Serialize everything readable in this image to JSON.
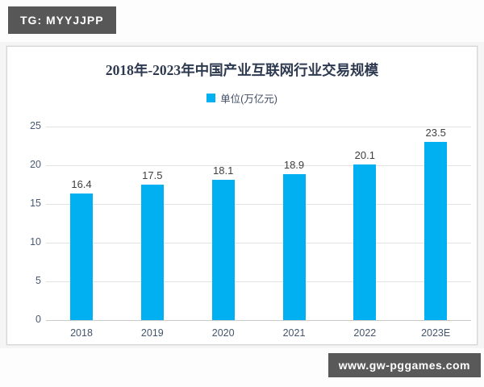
{
  "badges": {
    "top_left": "TG: MYYJJPP",
    "bottom_right": "www.gw-pggames.com",
    "badge_bg": "#575757",
    "badge_text_color": "#ffffff"
  },
  "chart_data": {
    "type": "bar",
    "title": "2018年-2023年中国产业互联网行业交易规模",
    "legend": [
      {
        "label": "单位(万亿元)",
        "color": "#00b0f0"
      }
    ],
    "legend_position": "top-center",
    "categories": [
      "2018",
      "2019",
      "2020",
      "2021",
      "2022",
      "2023E"
    ],
    "values": [
      16.4,
      17.5,
      18.1,
      18.9,
      20.1,
      23.5
    ],
    "value_labels": [
      "16.4",
      "17.5",
      "18.1",
      "18.9",
      "20.1",
      "23.5"
    ],
    "xlabel": "",
    "ylabel": "",
    "ylim": [
      0,
      25
    ],
    "yticks": [
      0,
      5,
      10,
      15,
      20,
      25
    ],
    "grid": true,
    "bar_color": "#00b0f0",
    "title_color": "#2e3a50",
    "axis_label_color": "#44546a",
    "data_label_color": "#404040"
  }
}
